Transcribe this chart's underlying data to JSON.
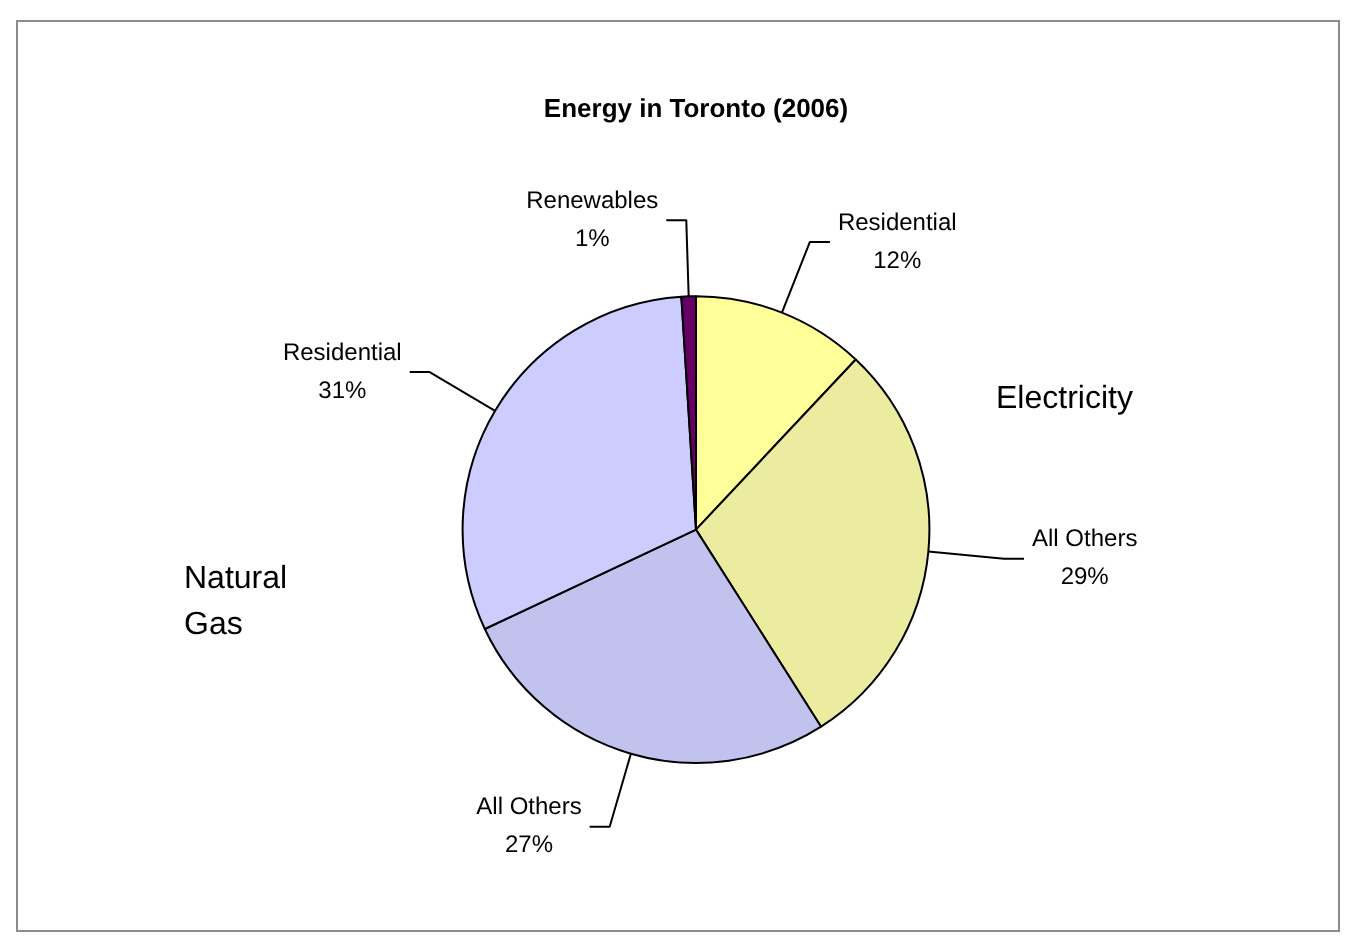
{
  "chart_data": {
    "type": "pie",
    "title": "Energy in Toronto (2006)",
    "categories": [
      "Residential",
      "All Others",
      "All Others",
      "Residential",
      "Renewables"
    ],
    "values": [
      12,
      29,
      27,
      31,
      1
    ],
    "value_labels": [
      "12%",
      "29%",
      "27%",
      "31%",
      "1%"
    ],
    "colors": [
      "#ffff99",
      "#ececa0",
      "#c2c2ee",
      "#ccccff",
      "#660066"
    ],
    "annotations": [
      "Electricity",
      "Natural Gas"
    ],
    "legend": false
  }
}
